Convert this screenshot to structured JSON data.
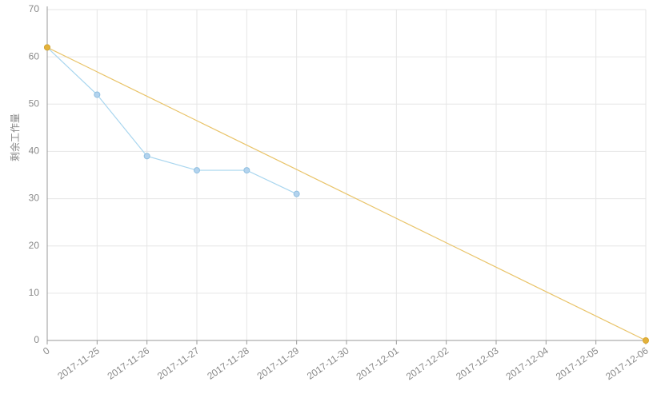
{
  "chart_data": {
    "type": "line",
    "y_label": "剩余工作量",
    "categories": [
      "0",
      "2017-11-25",
      "2017-11-26",
      "2017-11-27",
      "2017-11-28",
      "2017-11-29",
      "2017-11-30",
      "2017-12-01",
      "2017-12-02",
      "2017-12-03",
      "2017-12-04",
      "2017-12-05",
      "2017-12-06"
    ],
    "series": [
      {
        "color": "#a9d6ef",
        "values": [
          62,
          52,
          39,
          36,
          36,
          31,
          null,
          null,
          null,
          null,
          null,
          null,
          null
        ]
      },
      {
        "color": "#e9c46a",
        "values": [
          62,
          56.83,
          51.67,
          46.5,
          41.33,
          36.17,
          31,
          25.83,
          20.67,
          15.5,
          10.33,
          5.17,
          0
        ]
      }
    ],
    "ylim": [
      0,
      70
    ],
    "yticks": [
      0,
      10,
      20,
      30,
      40,
      50,
      60,
      70
    ],
    "grid": true
  }
}
